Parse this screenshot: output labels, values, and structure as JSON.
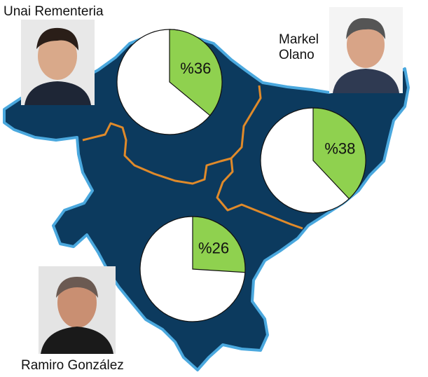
{
  "candidates": [
    {
      "name": "Unai Rementeria",
      "value": 36,
      "value_label": "%36"
    },
    {
      "name": "Markel Olano",
      "value": 38,
      "value_label": "%38"
    },
    {
      "name": "Ramiro González",
      "value": 26,
      "value_label": "%26"
    }
  ]
}
